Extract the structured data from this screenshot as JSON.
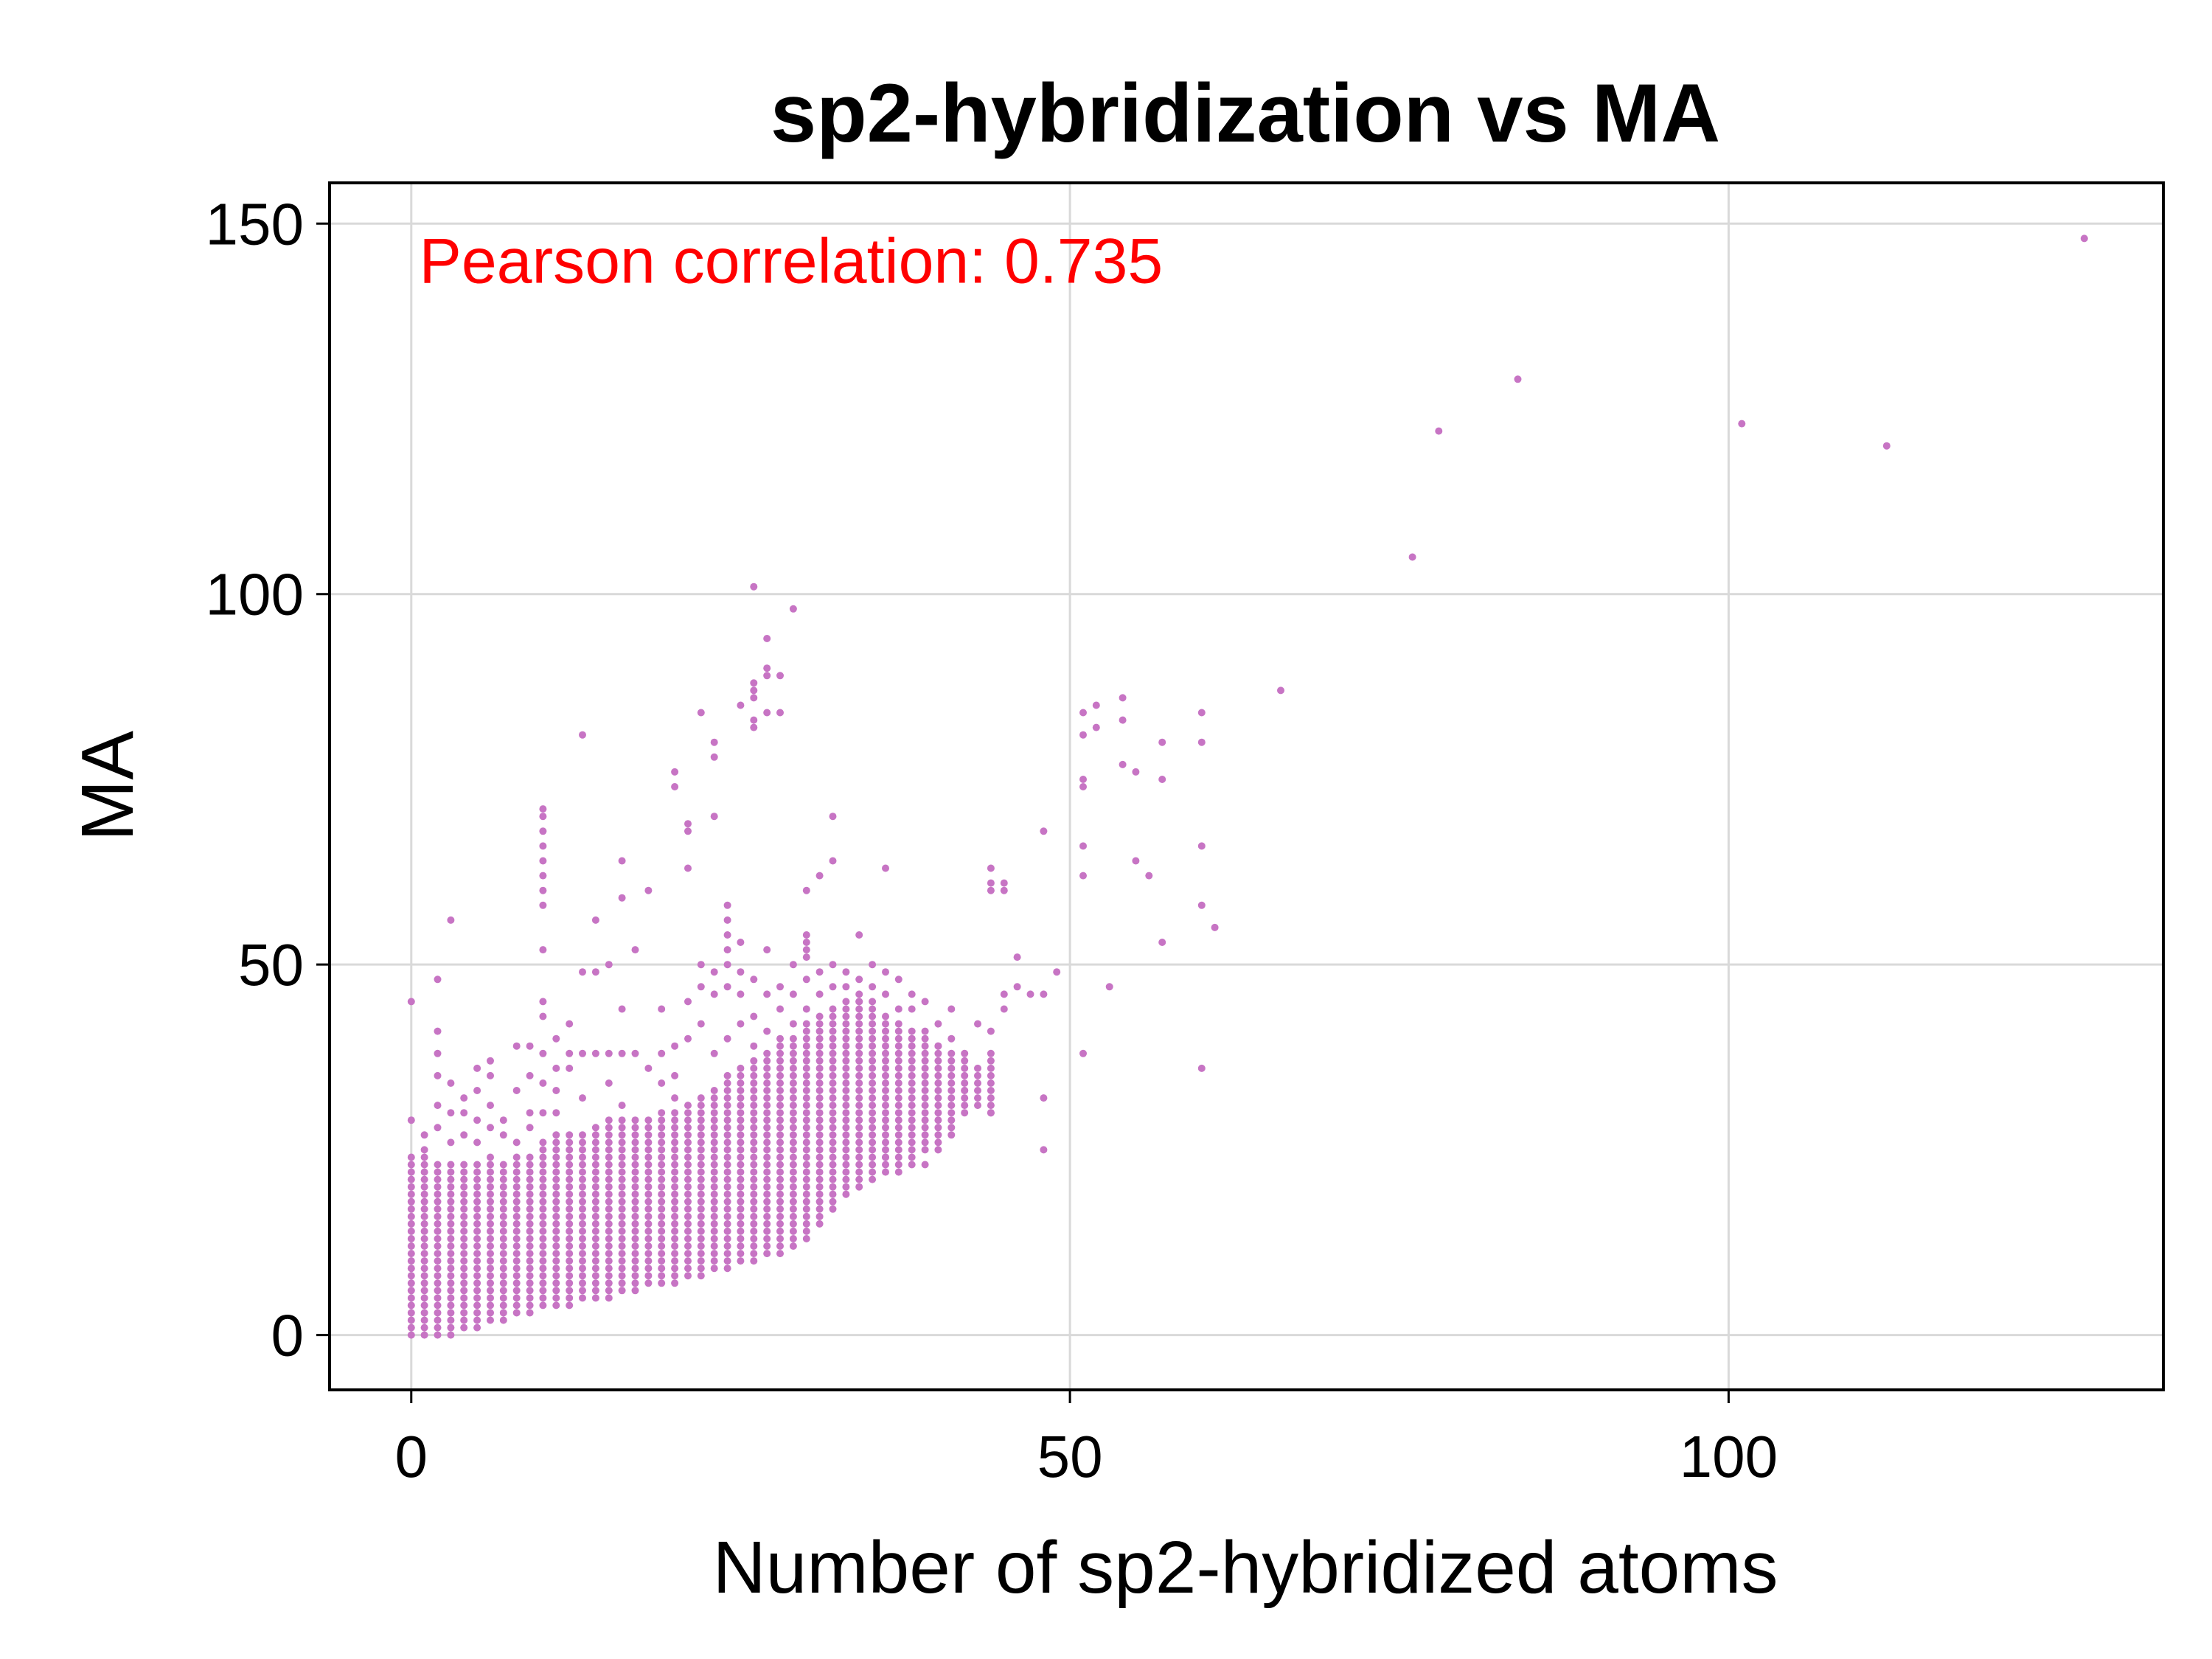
{
  "chart_data": {
    "type": "scatter",
    "title": "sp2-hybridization vs MA",
    "xlabel": "Number of sp2-hybridized atoms",
    "ylabel": "MA",
    "xlim": [
      -6.2,
      133
    ],
    "ylim": [
      -7.4,
      155.5
    ],
    "xticks": [
      0,
      50,
      100
    ],
    "yticks": [
      0,
      50,
      100,
      150
    ],
    "xtick_labels": [
      "0",
      "50",
      "100"
    ],
    "ytick_labels": [
      "0",
      "50",
      "100",
      "150"
    ],
    "grid": true,
    "marker_color": "#c774c4",
    "annotation": {
      "text": "Pearson correlation: 0.735",
      "color": "#ff0000",
      "x": 0.6,
      "y": 145
    },
    "points": {
      "column_ranges": [
        [
          0,
          0,
          24
        ],
        [
          1,
          0,
          24
        ],
        [
          2,
          0,
          23
        ],
        [
          3,
          0,
          23
        ],
        [
          4,
          1,
          23
        ],
        [
          5,
          1,
          23
        ],
        [
          6,
          2,
          24
        ],
        [
          7,
          2,
          23
        ],
        [
          8,
          3,
          24
        ],
        [
          9,
          3,
          24
        ],
        [
          10,
          4,
          26
        ],
        [
          11,
          4,
          27
        ],
        [
          12,
          4,
          27
        ],
        [
          13,
          5,
          27
        ],
        [
          14,
          5,
          28
        ],
        [
          15,
          5,
          29
        ],
        [
          16,
          6,
          29
        ],
        [
          17,
          6,
          29
        ],
        [
          18,
          7,
          29
        ],
        [
          19,
          7,
          30
        ],
        [
          20,
          7,
          30
        ],
        [
          21,
          8,
          31
        ],
        [
          22,
          8,
          32
        ],
        [
          23,
          9,
          33
        ],
        [
          24,
          9,
          35
        ],
        [
          25,
          10,
          36
        ],
        [
          26,
          10,
          37
        ],
        [
          27,
          11,
          38
        ],
        [
          28,
          11,
          39
        ],
        [
          29,
          12,
          40
        ],
        [
          30,
          13,
          42
        ],
        [
          31,
          15,
          43
        ],
        [
          32,
          17,
          44
        ],
        [
          33,
          19,
          45
        ],
        [
          34,
          20,
          46
        ],
        [
          35,
          21,
          44
        ],
        [
          36,
          22,
          43
        ],
        [
          37,
          23,
          42
        ],
        [
          38,
          24,
          41
        ],
        [
          39,
          25,
          40
        ],
        [
          40,
          26,
          39
        ],
        [
          41,
          28,
          38
        ],
        [
          42,
          30,
          37
        ],
        [
          43,
          32,
          36
        ],
        [
          44,
          30,
          38
        ]
      ],
      "scattered": [
        [
          0,
          29
        ],
        [
          0,
          45
        ],
        [
          1,
          27
        ],
        [
          1,
          25
        ],
        [
          2,
          28
        ],
        [
          2,
          31
        ],
        [
          2,
          35
        ],
        [
          2,
          38
        ],
        [
          2,
          41
        ],
        [
          2,
          48
        ],
        [
          3,
          26
        ],
        [
          3,
          30
        ],
        [
          3,
          34
        ],
        [
          3,
          56
        ],
        [
          4,
          27
        ],
        [
          4,
          30
        ],
        [
          4,
          32
        ],
        [
          5,
          26
        ],
        [
          5,
          29
        ],
        [
          5,
          33
        ],
        [
          5,
          36
        ],
        [
          6,
          28
        ],
        [
          6,
          31
        ],
        [
          6,
          35
        ],
        [
          6,
          37
        ],
        [
          7,
          27
        ],
        [
          7,
          29
        ],
        [
          8,
          26
        ],
        [
          8,
          33
        ],
        [
          8,
          39
        ],
        [
          9,
          28
        ],
        [
          9,
          30
        ],
        [
          9,
          35
        ],
        [
          9,
          39
        ],
        [
          10,
          30
        ],
        [
          10,
          34
        ],
        [
          10,
          38
        ],
        [
          10,
          43
        ],
        [
          10,
          45
        ],
        [
          10,
          52
        ],
        [
          10,
          58
        ],
        [
          10,
          60
        ],
        [
          10,
          62
        ],
        [
          10,
          64
        ],
        [
          10,
          66
        ],
        [
          10,
          68
        ],
        [
          10,
          70
        ],
        [
          10,
          71
        ],
        [
          11,
          30
        ],
        [
          11,
          33
        ],
        [
          11,
          36
        ],
        [
          11,
          40
        ],
        [
          12,
          36
        ],
        [
          12,
          38
        ],
        [
          12,
          42
        ],
        [
          13,
          38
        ],
        [
          13,
          32
        ],
        [
          13,
          81
        ],
        [
          13,
          49
        ],
        [
          14,
          38
        ],
        [
          14,
          56
        ],
        [
          14,
          49
        ],
        [
          15,
          34
        ],
        [
          15,
          38
        ],
        [
          15,
          50
        ],
        [
          16,
          31
        ],
        [
          16,
          38
        ],
        [
          16,
          64
        ],
        [
          16,
          59
        ],
        [
          16,
          44
        ],
        [
          17,
          38
        ],
        [
          17,
          52
        ],
        [
          18,
          36
        ],
        [
          18,
          60
        ],
        [
          19,
          34
        ],
        [
          19,
          38
        ],
        [
          19,
          44
        ],
        [
          20,
          32
        ],
        [
          20,
          35
        ],
        [
          20,
          39
        ],
        [
          20,
          74
        ],
        [
          20,
          76
        ],
        [
          21,
          40
        ],
        [
          21,
          45
        ],
        [
          21,
          63
        ],
        [
          21,
          68
        ],
        [
          21,
          69
        ],
        [
          22,
          42
        ],
        [
          22,
          47
        ],
        [
          22,
          50
        ],
        [
          22,
          84
        ],
        [
          23,
          38
        ],
        [
          23,
          46
        ],
        [
          23,
          49
        ],
        [
          23,
          70
        ],
        [
          23,
          78
        ],
        [
          23,
          80
        ],
        [
          24,
          40
        ],
        [
          24,
          47
        ],
        [
          24,
          50
        ],
        [
          24,
          52
        ],
        [
          24,
          54
        ],
        [
          24,
          56
        ],
        [
          24,
          58
        ],
        [
          25,
          42
        ],
        [
          25,
          46
        ],
        [
          25,
          49
        ],
        [
          25,
          53
        ],
        [
          25,
          85
        ],
        [
          26,
          39
        ],
        [
          26,
          43
        ],
        [
          26,
          48
        ],
        [
          26,
          82
        ],
        [
          26,
          83
        ],
        [
          26,
          86
        ],
        [
          26,
          87
        ],
        [
          26,
          88
        ],
        [
          26,
          101
        ],
        [
          27,
          41
        ],
        [
          27,
          46
        ],
        [
          27,
          52
        ],
        [
          27,
          84
        ],
        [
          27,
          89
        ],
        [
          27,
          90
        ],
        [
          27,
          94
        ],
        [
          28,
          40
        ],
        [
          28,
          44
        ],
        [
          28,
          47
        ],
        [
          28,
          84
        ],
        [
          28,
          89
        ],
        [
          29,
          42
        ],
        [
          29,
          46
        ],
        [
          29,
          50
        ],
        [
          29,
          98
        ],
        [
          30,
          44
        ],
        [
          30,
          48
        ],
        [
          30,
          51
        ],
        [
          30,
          52
        ],
        [
          30,
          53
        ],
        [
          30,
          54
        ],
        [
          30,
          60
        ],
        [
          31,
          46
        ],
        [
          31,
          49
        ],
        [
          31,
          62
        ],
        [
          32,
          47
        ],
        [
          32,
          50
        ],
        [
          32,
          64
        ],
        [
          32,
          70
        ],
        [
          33,
          47
        ],
        [
          33,
          49
        ],
        [
          34,
          45
        ],
        [
          34,
          48
        ],
        [
          34,
          54
        ],
        [
          35,
          45
        ],
        [
          35,
          47
        ],
        [
          35,
          50
        ],
        [
          36,
          46
        ],
        [
          36,
          49
        ],
        [
          36,
          63
        ],
        [
          36,
          24
        ],
        [
          37,
          22
        ],
        [
          37,
          44
        ],
        [
          37,
          48
        ],
        [
          38,
          23
        ],
        [
          38,
          40
        ],
        [
          38,
          44
        ],
        [
          38,
          46
        ],
        [
          39,
          23
        ],
        [
          39,
          35
        ],
        [
          39,
          41
        ],
        [
          39,
          45
        ],
        [
          40,
          25
        ],
        [
          40,
          39
        ],
        [
          40,
          42
        ],
        [
          41,
          27
        ],
        [
          41,
          40
        ],
        [
          41,
          44
        ],
        [
          42,
          33
        ],
        [
          42,
          38
        ],
        [
          43,
          31
        ],
        [
          43,
          42
        ],
        [
          44,
          30
        ],
        [
          44,
          41
        ],
        [
          44,
          60
        ],
        [
          44,
          61
        ],
        [
          44,
          63
        ],
        [
          45,
          44
        ],
        [
          45,
          46
        ],
        [
          45,
          60
        ],
        [
          45,
          61
        ],
        [
          46,
          47
        ],
        [
          46,
          51
        ],
        [
          47,
          46
        ],
        [
          48,
          46
        ],
        [
          48,
          68
        ],
        [
          48,
          32
        ],
        [
          48,
          25
        ],
        [
          49,
          49
        ],
        [
          51,
          84
        ],
        [
          51,
          81
        ],
        [
          51,
          75
        ],
        [
          51,
          74
        ],
        [
          51,
          66
        ],
        [
          51,
          62
        ],
        [
          51,
          38
        ],
        [
          52,
          85
        ],
        [
          52,
          82
        ],
        [
          53,
          47
        ],
        [
          54,
          86
        ],
        [
          54,
          83
        ],
        [
          54,
          77
        ],
        [
          55,
          76
        ],
        [
          55,
          64
        ],
        [
          56,
          62
        ],
        [
          57,
          80
        ],
        [
          57,
          75
        ],
        [
          57,
          53
        ],
        [
          60,
          84
        ],
        [
          60,
          80
        ],
        [
          60,
          66
        ],
        [
          60,
          58
        ],
        [
          60,
          36
        ],
        [
          61,
          55
        ],
        [
          66,
          87
        ],
        [
          76,
          105
        ],
        [
          78,
          122
        ],
        [
          84,
          129
        ],
        [
          101,
          123
        ],
        [
          112,
          120
        ],
        [
          127,
          148
        ]
      ]
    }
  }
}
